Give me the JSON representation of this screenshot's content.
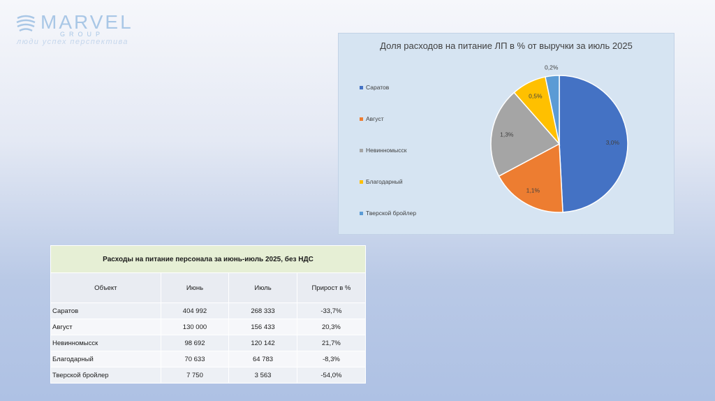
{
  "logo": {
    "name": "MARVEL",
    "group": "GROUP",
    "tagline": "люди успех перспектива"
  },
  "chart_data": {
    "type": "pie",
    "title": "Доля расходов на питание ЛП в % от выручки за июль 2025",
    "legend_position": "left",
    "categories": [
      "Саратов",
      "Август",
      "Невинномысск",
      "Благодарный",
      "Тверской бройлер"
    ],
    "values": [
      3.0,
      1.1,
      1.3,
      0.5,
      0.2
    ],
    "data_labels": [
      "3,0%",
      "1,1%",
      "1,3%",
      "0,5%",
      "0,2%"
    ],
    "colors": [
      "#4472c4",
      "#ed7d31",
      "#a5a5a5",
      "#ffc000",
      "#5b9bd5"
    ]
  },
  "table": {
    "title": "Расходы на питание персонала за июнь-июль 2025, без НДС",
    "headers": [
      "Объект",
      "Июнь",
      "Июль",
      "Прирост в %"
    ],
    "rows": [
      [
        "Саратов",
        "404 992",
        "268 333",
        "-33,7%"
      ],
      [
        "Август",
        "130 000",
        "156 433",
        "20,3%"
      ],
      [
        "Невинномысск",
        "98 692",
        "120 142",
        "21,7%"
      ],
      [
        "Благодарный",
        "70 633",
        "64 783",
        "-8,3%"
      ],
      [
        "Тверской бройлер",
        "7 750",
        "3 563",
        "-54,0%"
      ]
    ]
  }
}
